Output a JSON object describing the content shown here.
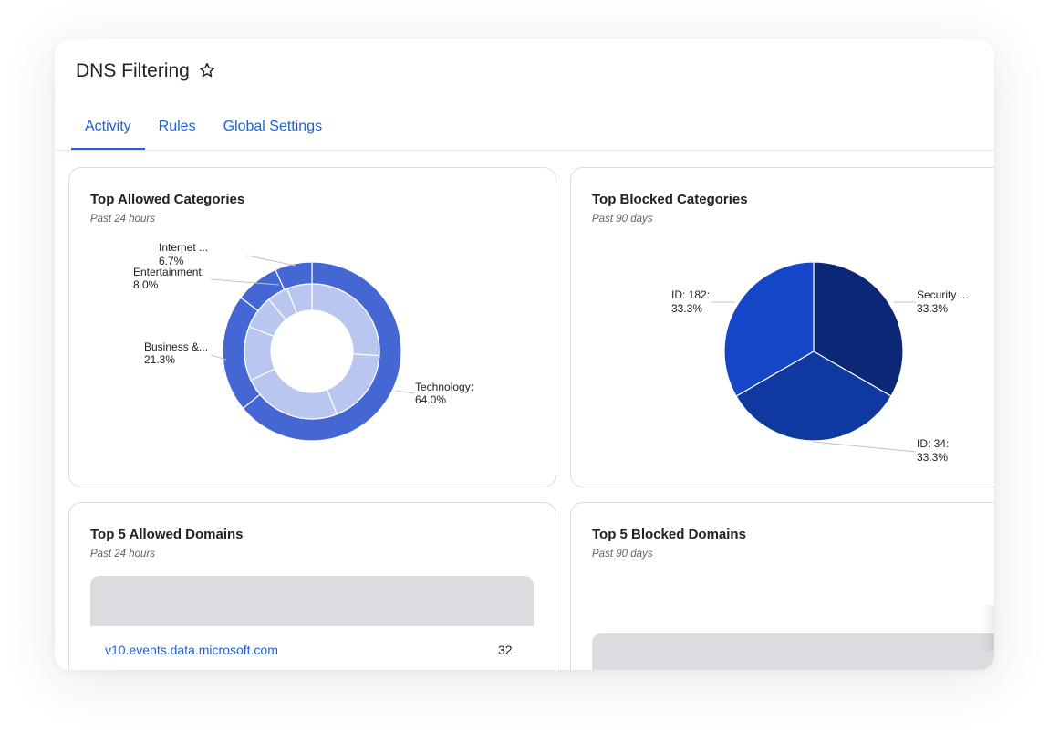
{
  "page": {
    "title": "DNS Filtering"
  },
  "tabs": [
    {
      "label": "Activity"
    },
    {
      "label": "Rules"
    },
    {
      "label": "Global Settings"
    }
  ],
  "cards": {
    "allowed_categories": {
      "title": "Top Allowed Categories",
      "subtitle": "Past 24 hours"
    },
    "blocked_categories": {
      "title": "Top Blocked Categories",
      "subtitle": "Past 90 days"
    },
    "allowed_domains": {
      "title": "Top 5 Allowed Domains",
      "subtitle": "Past 24 hours",
      "rows": [
        {
          "domain": "v10.events.data.microsoft.com",
          "count": "32"
        }
      ]
    },
    "blocked_domains": {
      "title": "Top 5 Blocked Domains",
      "subtitle": "Past 90 days"
    }
  },
  "colors": {
    "accent": "#1a62d6",
    "donut_outer": "#4567d4",
    "donut_inner": "#b9c7f0",
    "pie": [
      "#0b2775",
      "#0f38a0",
      "#1646c8"
    ]
  },
  "chart_data": [
    {
      "type": "pie",
      "variant": "donut",
      "title": "Top Allowed Categories",
      "subtitle": "Past 24 hours",
      "categories": [
        "Technology:",
        "Business &...",
        "Entertainment:",
        "Internet ..."
      ],
      "values": [
        64.0,
        21.3,
        8.0,
        6.7
      ],
      "labels": [
        "64.0%",
        "21.3%",
        "8.0%",
        "6.7%"
      ],
      "inner_ring": [
        26,
        18,
        24,
        13,
        8,
        5,
        6
      ]
    },
    {
      "type": "pie",
      "title": "Top Blocked Categories",
      "subtitle": "Past 90 days",
      "categories": [
        "Security ...",
        "ID: 34:",
        "ID: 182:"
      ],
      "values": [
        33.3,
        33.3,
        33.3
      ],
      "labels": [
        "33.3%",
        "33.3%",
        "33.3%"
      ]
    }
  ]
}
